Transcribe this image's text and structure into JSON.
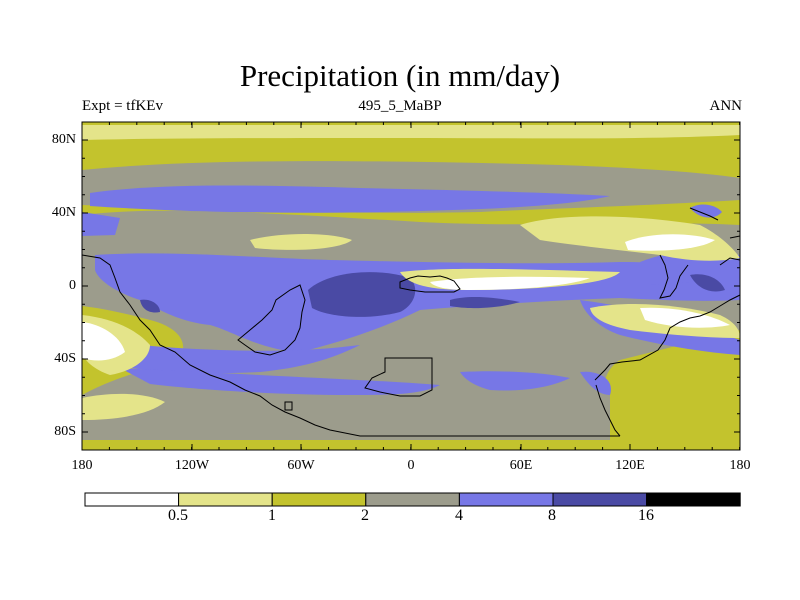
{
  "title": "Precipitation (in mm/day)",
  "subtitle_left": "Expt = tfKEv",
  "subtitle_center": "495_5_MaBP",
  "subtitle_right": "ANN",
  "y_ticks": [
    "80N",
    "40N",
    "0",
    "40S",
    "80S"
  ],
  "x_ticks": [
    "180",
    "120W",
    "60W",
    "0",
    "60E",
    "120E",
    "180"
  ],
  "colorbar": {
    "colors": [
      "#ffffff",
      "#e4e48a",
      "#c3c32d",
      "#9c9c8c",
      "#7777e6",
      "#4a4aa4",
      "#000000"
    ],
    "labels": [
      "0.5",
      "1",
      "2",
      "4",
      "8",
      "16"
    ]
  },
  "palette": {
    "lt05": "#ffffff",
    "c05_1": "#e4e48a",
    "c1_2": "#c3c32d",
    "c2_4": "#9c9c8c",
    "c4_8": "#7777e6",
    "c8_16": "#4a4aa4"
  }
}
